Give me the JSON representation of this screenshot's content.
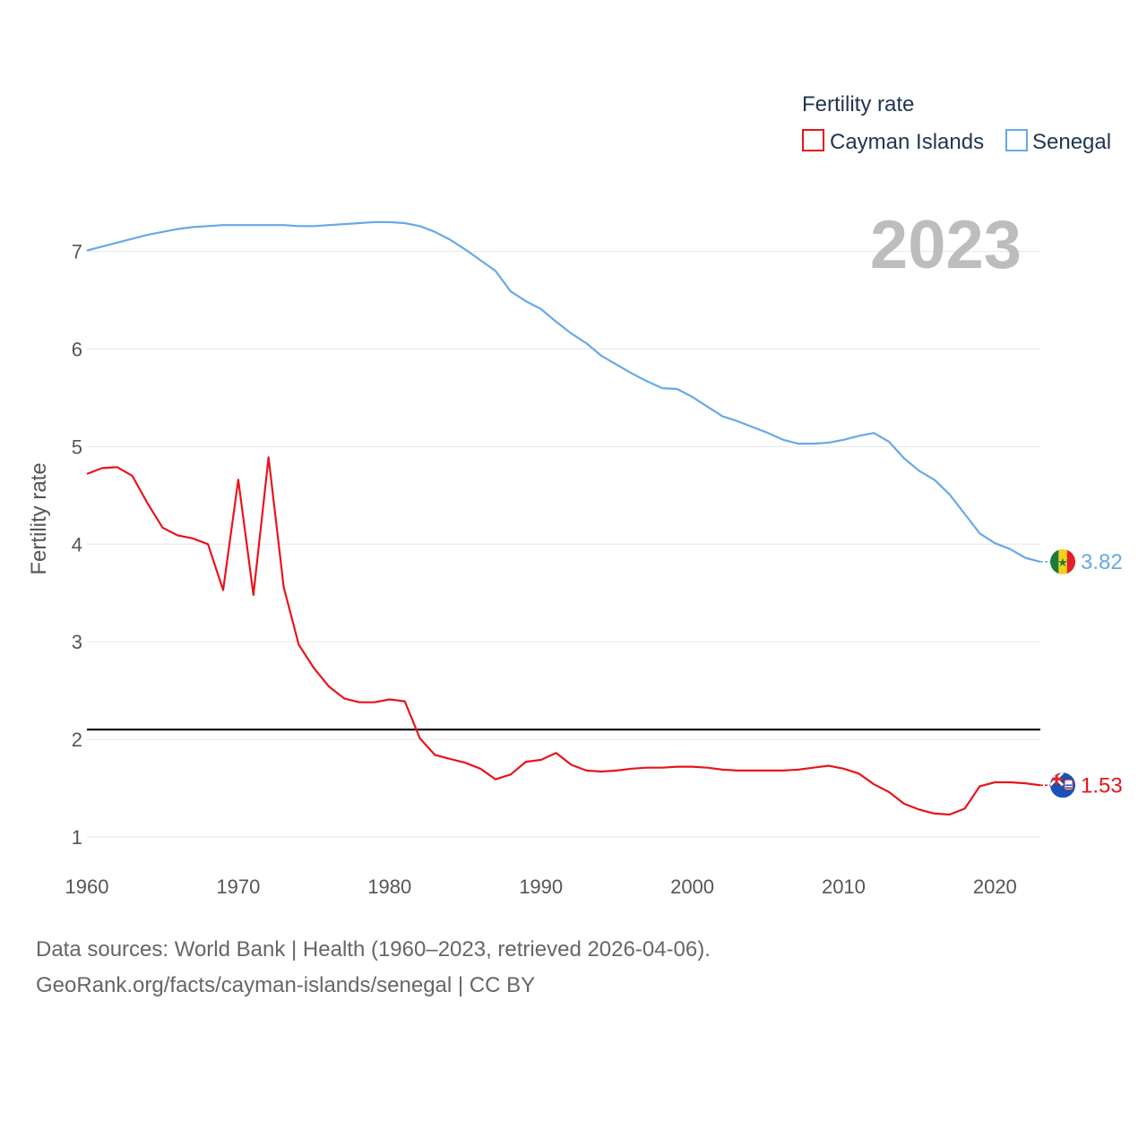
{
  "chart_data": {
    "type": "line",
    "legend_title": "Fertility rate",
    "ylabel": "Fertility rate",
    "year_label": "2023",
    "xlim": [
      1960,
      2023
    ],
    "ylim": [
      0.75,
      7.5
    ],
    "xticks": [
      1960,
      1970,
      1980,
      1990,
      2000,
      2010,
      2020
    ],
    "yticks": [
      1,
      2,
      3,
      4,
      5,
      6,
      7
    ],
    "reference_line": {
      "value": 2.1,
      "color": "#000000"
    },
    "x": [
      1960,
      1961,
      1962,
      1963,
      1964,
      1965,
      1966,
      1967,
      1968,
      1969,
      1970,
      1971,
      1972,
      1973,
      1974,
      1975,
      1976,
      1977,
      1978,
      1979,
      1980,
      1981,
      1982,
      1983,
      1984,
      1985,
      1986,
      1987,
      1988,
      1989,
      1990,
      1991,
      1992,
      1993,
      1994,
      1995,
      1996,
      1997,
      1998,
      1999,
      2000,
      2001,
      2002,
      2003,
      2004,
      2005,
      2006,
      2007,
      2008,
      2009,
      2010,
      2011,
      2012,
      2013,
      2014,
      2015,
      2016,
      2017,
      2018,
      2019,
      2020,
      2021,
      2022,
      2023
    ],
    "series": [
      {
        "name": "Cayman Islands",
        "color": "#e8141c",
        "end_label": "1.53",
        "values": [
          4.72,
          4.78,
          4.79,
          4.7,
          4.42,
          4.17,
          4.09,
          4.06,
          4.0,
          3.53,
          4.66,
          3.48,
          4.89,
          3.56,
          2.97,
          2.73,
          2.54,
          2.42,
          2.38,
          2.38,
          2.41,
          2.39,
          2.01,
          1.84,
          1.8,
          1.76,
          1.7,
          1.59,
          1.64,
          1.77,
          1.79,
          1.86,
          1.74,
          1.68,
          1.67,
          1.68,
          1.7,
          1.71,
          1.71,
          1.72,
          1.72,
          1.71,
          1.69,
          1.68,
          1.68,
          1.68,
          1.68,
          1.69,
          1.71,
          1.73,
          1.7,
          1.65,
          1.54,
          1.46,
          1.34,
          1.28,
          1.24,
          1.23,
          1.29,
          1.52,
          1.56,
          1.56,
          1.55,
          1.53
        ]
      },
      {
        "name": "Senegal",
        "color": "#67a9e8",
        "end_label": "3.82",
        "values": [
          7.01,
          7.05,
          7.09,
          7.13,
          7.17,
          7.2,
          7.23,
          7.25,
          7.26,
          7.27,
          7.27,
          7.27,
          7.27,
          7.27,
          7.26,
          7.26,
          7.27,
          7.28,
          7.29,
          7.3,
          7.3,
          7.29,
          7.26,
          7.2,
          7.12,
          7.02,
          6.91,
          6.8,
          6.59,
          6.49,
          6.41,
          6.28,
          6.16,
          6.06,
          5.93,
          5.84,
          5.75,
          5.67,
          5.6,
          5.59,
          5.51,
          5.41,
          5.31,
          5.26,
          5.2,
          5.14,
          5.07,
          5.03,
          5.03,
          5.04,
          5.07,
          5.11,
          5.14,
          5.05,
          4.88,
          4.75,
          4.66,
          4.51,
          4.31,
          4.11,
          4.01,
          3.95,
          3.86,
          3.82
        ]
      }
    ]
  },
  "source": {
    "line1": "Data sources: World Bank | Health (1960–2023, retrieved 2026-04-06).",
    "line2": "GeoRank.org/facts/cayman-islands/senegal | CC BY"
  }
}
